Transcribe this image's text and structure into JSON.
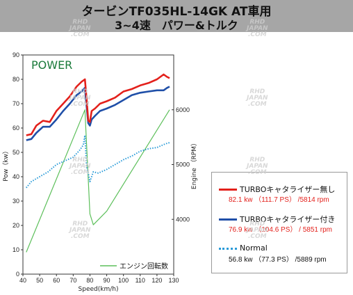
{
  "header": {
    "title_line1": "タービンTF035HL-14GK AT車用",
    "title_line2": "3~4速　パワー&トルク"
  },
  "watermark": {
    "line1": "RHD",
    "line2": "JAPAN",
    "line3": ".COM"
  },
  "legend": {
    "items": [
      {
        "name": "TURBOキャタライザー無し",
        "value": "82.1 kw （111.7 PS） /5814 rpm",
        "color": "#e3201b",
        "value_color": "#e3201b"
      },
      {
        "name": "TURBOキャタライザー付き",
        "value": "76.9 kw （104.6 PS） / 5851 rpm",
        "color": "#1f4fa8",
        "value_color": "#e3201b"
      },
      {
        "name": "Normal",
        "value": "56.8 kw （77.3 PS） /5889 rpm",
        "color": "#2a9bd8",
        "value_color": "#111111"
      }
    ]
  },
  "chart_data": {
    "type": "line",
    "title": "POWER",
    "xlabel": "Speed(km/h)",
    "ylabel": "Pow（kw）",
    "y2label": "Engine （RPM）",
    "xlim": [
      40,
      130
    ],
    "ylim": [
      0,
      90
    ],
    "y2lim": [
      3000,
      7000
    ],
    "x_ticks": [
      40,
      50,
      60,
      70,
      80,
      90,
      100,
      110,
      120,
      130
    ],
    "y_ticks": [
      0,
      10,
      20,
      30,
      40,
      50,
      60,
      70,
      80,
      90
    ],
    "y2_ticks": [
      4000,
      5000,
      6000
    ],
    "grid": false,
    "series": [
      {
        "name": "TURBOキャタライザー無し",
        "color": "#e3201b",
        "style": "solid",
        "x": [
          42,
          45,
          48,
          52,
          56,
          60,
          64,
          68,
          72,
          75,
          77,
          78,
          79,
          80,
          81,
          83,
          86,
          90,
          95,
          100,
          105,
          110,
          115,
          120,
          124,
          126,
          127.5
        ],
        "y": [
          57,
          57.5,
          61,
          63,
          62.5,
          67,
          70,
          73,
          77,
          79,
          80,
          72,
          63,
          62.5,
          67,
          68,
          70,
          71,
          72.5,
          75,
          76,
          77.5,
          78.5,
          80,
          82,
          81,
          80.5
        ]
      },
      {
        "name": "TURBOキャタライザー付き",
        "color": "#1f4fa8",
        "style": "solid",
        "x": [
          42,
          45,
          48,
          52,
          56,
          60,
          64,
          68,
          72,
          75,
          77,
          78,
          79,
          80,
          81,
          83,
          86,
          90,
          95,
          100,
          105,
          110,
          115,
          120,
          124,
          126,
          127.5
        ],
        "y": [
          55,
          55.5,
          58,
          60.5,
          60.5,
          63.5,
          67,
          70,
          73.5,
          75,
          76.5,
          69,
          62,
          61,
          63.5,
          65,
          67,
          68,
          69.5,
          71.5,
          73.5,
          74.5,
          75,
          75.5,
          75.5,
          76.5,
          77
        ]
      },
      {
        "name": "Normal",
        "color": "#2a9bd8",
        "style": "dotted",
        "x": [
          42,
          45,
          50,
          55,
          60,
          65,
          70,
          74,
          76,
          77,
          78,
          79,
          80,
          82,
          85,
          90,
          95,
          100,
          105,
          110,
          115,
          120,
          125,
          127.5
        ],
        "y": [
          35.5,
          38,
          40,
          42,
          45,
          46.5,
          48,
          51,
          53,
          57,
          44,
          41.5,
          38,
          42,
          41.5,
          43,
          45,
          47,
          48.5,
          50.5,
          51.5,
          52,
          53.5,
          54
        ]
      },
      {
        "name": "エンジン回転数",
        "color": "#5cbf5a",
        "style": "solid",
        "axis": "y2",
        "x": [
          42,
          77,
          80,
          82,
          90,
          127.5
        ],
        "y": [
          3400,
          6000,
          4100,
          3900,
          4150,
          6000
        ]
      }
    ]
  }
}
